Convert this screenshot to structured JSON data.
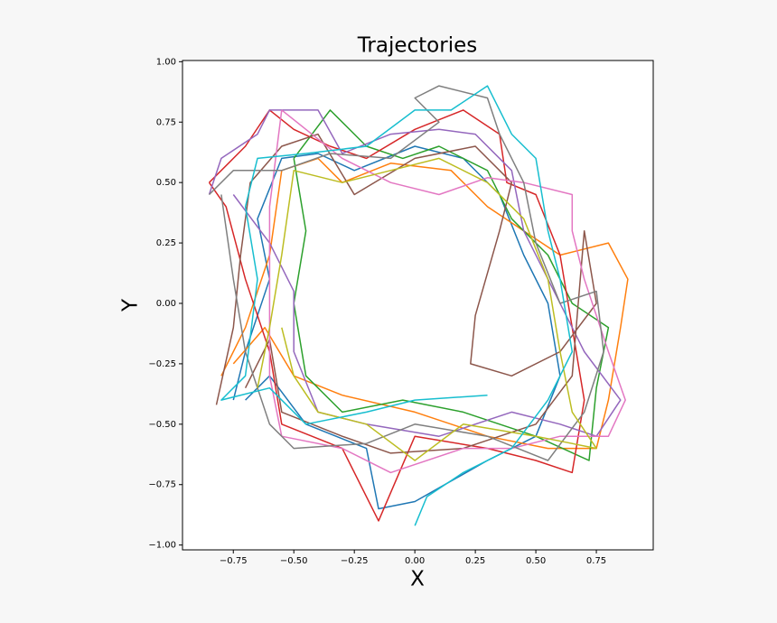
{
  "chart_data": {
    "type": "line",
    "title": "Trajectories",
    "x_label": "X",
    "y_label": "Y",
    "xlim": [
      -0.96,
      0.985
    ],
    "ylim": [
      -1.02,
      1.005
    ],
    "xticks": [
      {
        "value": -0.75,
        "label": "−0.75"
      },
      {
        "value": -0.5,
        "label": "−0.50"
      },
      {
        "value": -0.25,
        "label": "−0.25"
      },
      {
        "value": 0,
        "label": "0.00"
      },
      0.25,
      {
        "value": 0.5,
        "label": "0.50"
      },
      0.75
    ],
    "yticks": [
      {
        "value": -1,
        "label": "−1.00"
      },
      {
        "value": -0.75,
        "label": "−0.75"
      },
      {
        "value": -0.5,
        "label": "−0.50"
      },
      {
        "value": -0.25,
        "label": "−0.25"
      },
      {
        "value": 0,
        "label": "0.00"
      },
      0.25,
      {
        "value": 0.5,
        "label": "0.50"
      },
      0.75,
      {
        "value": 1,
        "label": "1.00"
      }
    ],
    "grid": false,
    "series": [
      {
        "color": "#1f77b4",
        "x": [
          -0.75,
          -0.7,
          -0.6,
          -0.65,
          -0.55,
          -0.4,
          -0.25,
          0,
          0.2,
          0.35,
          0.45,
          0.55,
          0.6,
          0.5,
          0.3,
          0.0,
          -0.15,
          -0.2,
          -0.45,
          -0.6,
          -0.7
        ],
        "values": [
          -0.4,
          -0.2,
          0.1,
          0.35,
          0.6,
          0.62,
          0.55,
          0.65,
          0.6,
          0.45,
          0.2,
          0,
          -0.3,
          -0.55,
          -0.65,
          -0.82,
          -0.85,
          -0.6,
          -0.5,
          -0.3,
          -0.4
        ]
      },
      {
        "color": "#ff7f0e",
        "x": [
          -0.8,
          -0.7,
          -0.6,
          -0.55,
          -0.4,
          -0.3,
          -0.1,
          0.15,
          0.3,
          0.45,
          0.6,
          0.8,
          0.88,
          0.85,
          0.8,
          0.75,
          0.55,
          0.3,
          0,
          -0.3,
          -0.5,
          -0.62,
          -0.75
        ],
        "values": [
          -0.3,
          -0.1,
          0.2,
          0.55,
          0.6,
          0.5,
          0.58,
          0.55,
          0.4,
          0.3,
          0.2,
          0.25,
          0.1,
          -0.1,
          -0.4,
          -0.6,
          -0.6,
          -0.55,
          -0.45,
          -0.38,
          -0.3,
          -0.1,
          -0.25
        ]
      },
      {
        "color": "#2ca02c",
        "x": [
          -0.5,
          -0.35,
          -0.2,
          -0.05,
          0.1,
          0.3,
          0.4,
          0.55,
          0.65,
          0.8,
          0.75,
          0.72,
          0.5,
          0.2,
          -0.05,
          -0.3,
          -0.45,
          -0.5,
          -0.45,
          -0.5
        ],
        "values": [
          0.6,
          0.8,
          0.65,
          0.6,
          0.65,
          0.55,
          0.35,
          0.2,
          0,
          -0.1,
          -0.35,
          -0.65,
          -0.55,
          -0.45,
          -0.4,
          -0.45,
          -0.3,
          0,
          0.3,
          0.6
        ]
      },
      {
        "color": "#d62728",
        "x": [
          -0.85,
          -0.7,
          -0.6,
          -0.5,
          -0.35,
          -0.2,
          0,
          0.2,
          0.35,
          0.38,
          0.5,
          0.6,
          0.65,
          0.7,
          0.65,
          0.5,
          0.3,
          0.0,
          -0.15,
          -0.3,
          -0.55,
          -0.6,
          -0.7,
          -0.78,
          -0.85
        ],
        "values": [
          0.5,
          0.65,
          0.8,
          0.72,
          0.65,
          0.6,
          0.72,
          0.8,
          0.7,
          0.5,
          0.45,
          0.2,
          -0.1,
          -0.4,
          -0.7,
          -0.65,
          -0.6,
          -0.55,
          -0.9,
          -0.6,
          -0.5,
          -0.2,
          0.1,
          0.4,
          0.5
        ]
      },
      {
        "color": "#9467bd",
        "x": [
          -0.85,
          -0.8,
          -0.65,
          -0.6,
          -0.4,
          -0.3,
          -0.1,
          0.1,
          0.25,
          0.4,
          0.45,
          0.55,
          0.7,
          0.85,
          0.75,
          0.6,
          0.4,
          0.1,
          -0.2,
          -0.4,
          -0.5,
          -0.5,
          -0.6,
          -0.75
        ],
        "values": [
          0.45,
          0.6,
          0.7,
          0.8,
          0.8,
          0.62,
          0.7,
          0.72,
          0.7,
          0.55,
          0.3,
          0.1,
          -0.2,
          -0.4,
          -0.55,
          -0.5,
          -0.45,
          -0.55,
          -0.5,
          -0.45,
          -0.2,
          0.05,
          0.25,
          0.45
        ]
      },
      {
        "color": "#8c564b",
        "x": [
          -0.82,
          -0.75,
          -0.72,
          -0.68,
          -0.55,
          -0.4,
          -0.25,
          0,
          0.25,
          0.4,
          0.35,
          0.25,
          0.23,
          0.4,
          0.6,
          0.75,
          0.7,
          0.65,
          0.5,
          0.2,
          -0.1,
          -0.3,
          -0.55,
          -0.6,
          -0.7
        ],
        "values": [
          -0.42,
          -0.1,
          0.2,
          0.5,
          0.65,
          0.7,
          0.45,
          0.6,
          0.65,
          0.5,
          0.3,
          -0.05,
          -0.25,
          -0.3,
          -0.2,
          0.0,
          0.3,
          -0.3,
          -0.5,
          -0.6,
          -0.62,
          -0.55,
          -0.45,
          -0.15,
          -0.35
        ]
      },
      {
        "color": "#e377c2",
        "x": [
          -0.55,
          -0.45,
          -0.3,
          -0.1,
          0.1,
          0.3,
          0.45,
          0.65,
          0.65,
          0.7,
          0.8,
          0.87,
          0.8,
          0.6,
          0.4,
          0.2,
          -0.1,
          -0.3,
          -0.55,
          -0.6,
          -0.6,
          -0.6,
          -0.55
        ],
        "values": [
          0.8,
          0.72,
          0.6,
          0.5,
          0.45,
          0.52,
          0.5,
          0.45,
          0.3,
          0.1,
          -0.2,
          -0.4,
          -0.55,
          -0.55,
          -0.6,
          -0.6,
          -0.7,
          -0.6,
          -0.55,
          -0.3,
          0.0,
          0.4,
          0.8
        ]
      },
      {
        "color": "#7f7f7f",
        "x": [
          -0.85,
          -0.75,
          -0.55,
          -0.35,
          -0.1,
          0.1,
          0.0,
          0.1,
          0.3,
          0.35,
          0.45,
          0.5,
          0.6,
          0.75,
          0.78,
          0.7,
          0.55,
          0.3,
          0.0,
          -0.2,
          -0.5,
          -0.6,
          -0.7,
          -0.75,
          -0.8
        ],
        "values": [
          0.45,
          0.55,
          0.55,
          0.62,
          0.6,
          0.75,
          0.85,
          0.9,
          0.85,
          0.7,
          0.5,
          0.25,
          0.0,
          0.05,
          -0.2,
          -0.45,
          -0.65,
          -0.55,
          -0.5,
          -0.58,
          -0.6,
          -0.5,
          -0.2,
          0.1,
          0.45
        ]
      },
      {
        "color": "#bcbd22",
        "x": [
          -0.65,
          -0.6,
          -0.55,
          -0.5,
          -0.3,
          -0.1,
          0.1,
          0.3,
          0.45,
          0.55,
          0.6,
          0.65,
          0.75,
          0.5,
          0.2,
          0.0,
          -0.2,
          -0.4,
          -0.5,
          -0.55
        ],
        "values": [
          -0.35,
          -0.1,
          0.2,
          0.55,
          0.5,
          0.55,
          0.6,
          0.5,
          0.35,
          0.1,
          -0.2,
          -0.45,
          -0.6,
          -0.55,
          -0.5,
          -0.65,
          -0.5,
          -0.45,
          -0.3,
          -0.1
        ]
      },
      {
        "color": "#17becf",
        "x": [
          0,
          0.05,
          0.2,
          0.4,
          0.55,
          0.65,
          0.6,
          0.55,
          0.5,
          0.4,
          0.3,
          0.15,
          0.0,
          -0.2,
          -0.45,
          -0.65,
          -0.7,
          -0.65,
          -0.7,
          -0.8,
          -0.6,
          -0.45,
          -0.2,
          0.0,
          0.3
        ],
        "values": [
          -0.92,
          -0.8,
          -0.7,
          -0.6,
          -0.4,
          -0.2,
          0.1,
          0.3,
          0.6,
          0.7,
          0.9,
          0.8,
          0.8,
          0.65,
          0.62,
          0.6,
          0.4,
          0.1,
          -0.3,
          -0.4,
          -0.35,
          -0.5,
          -0.45,
          -0.4,
          -0.38
        ]
      }
    ]
  }
}
